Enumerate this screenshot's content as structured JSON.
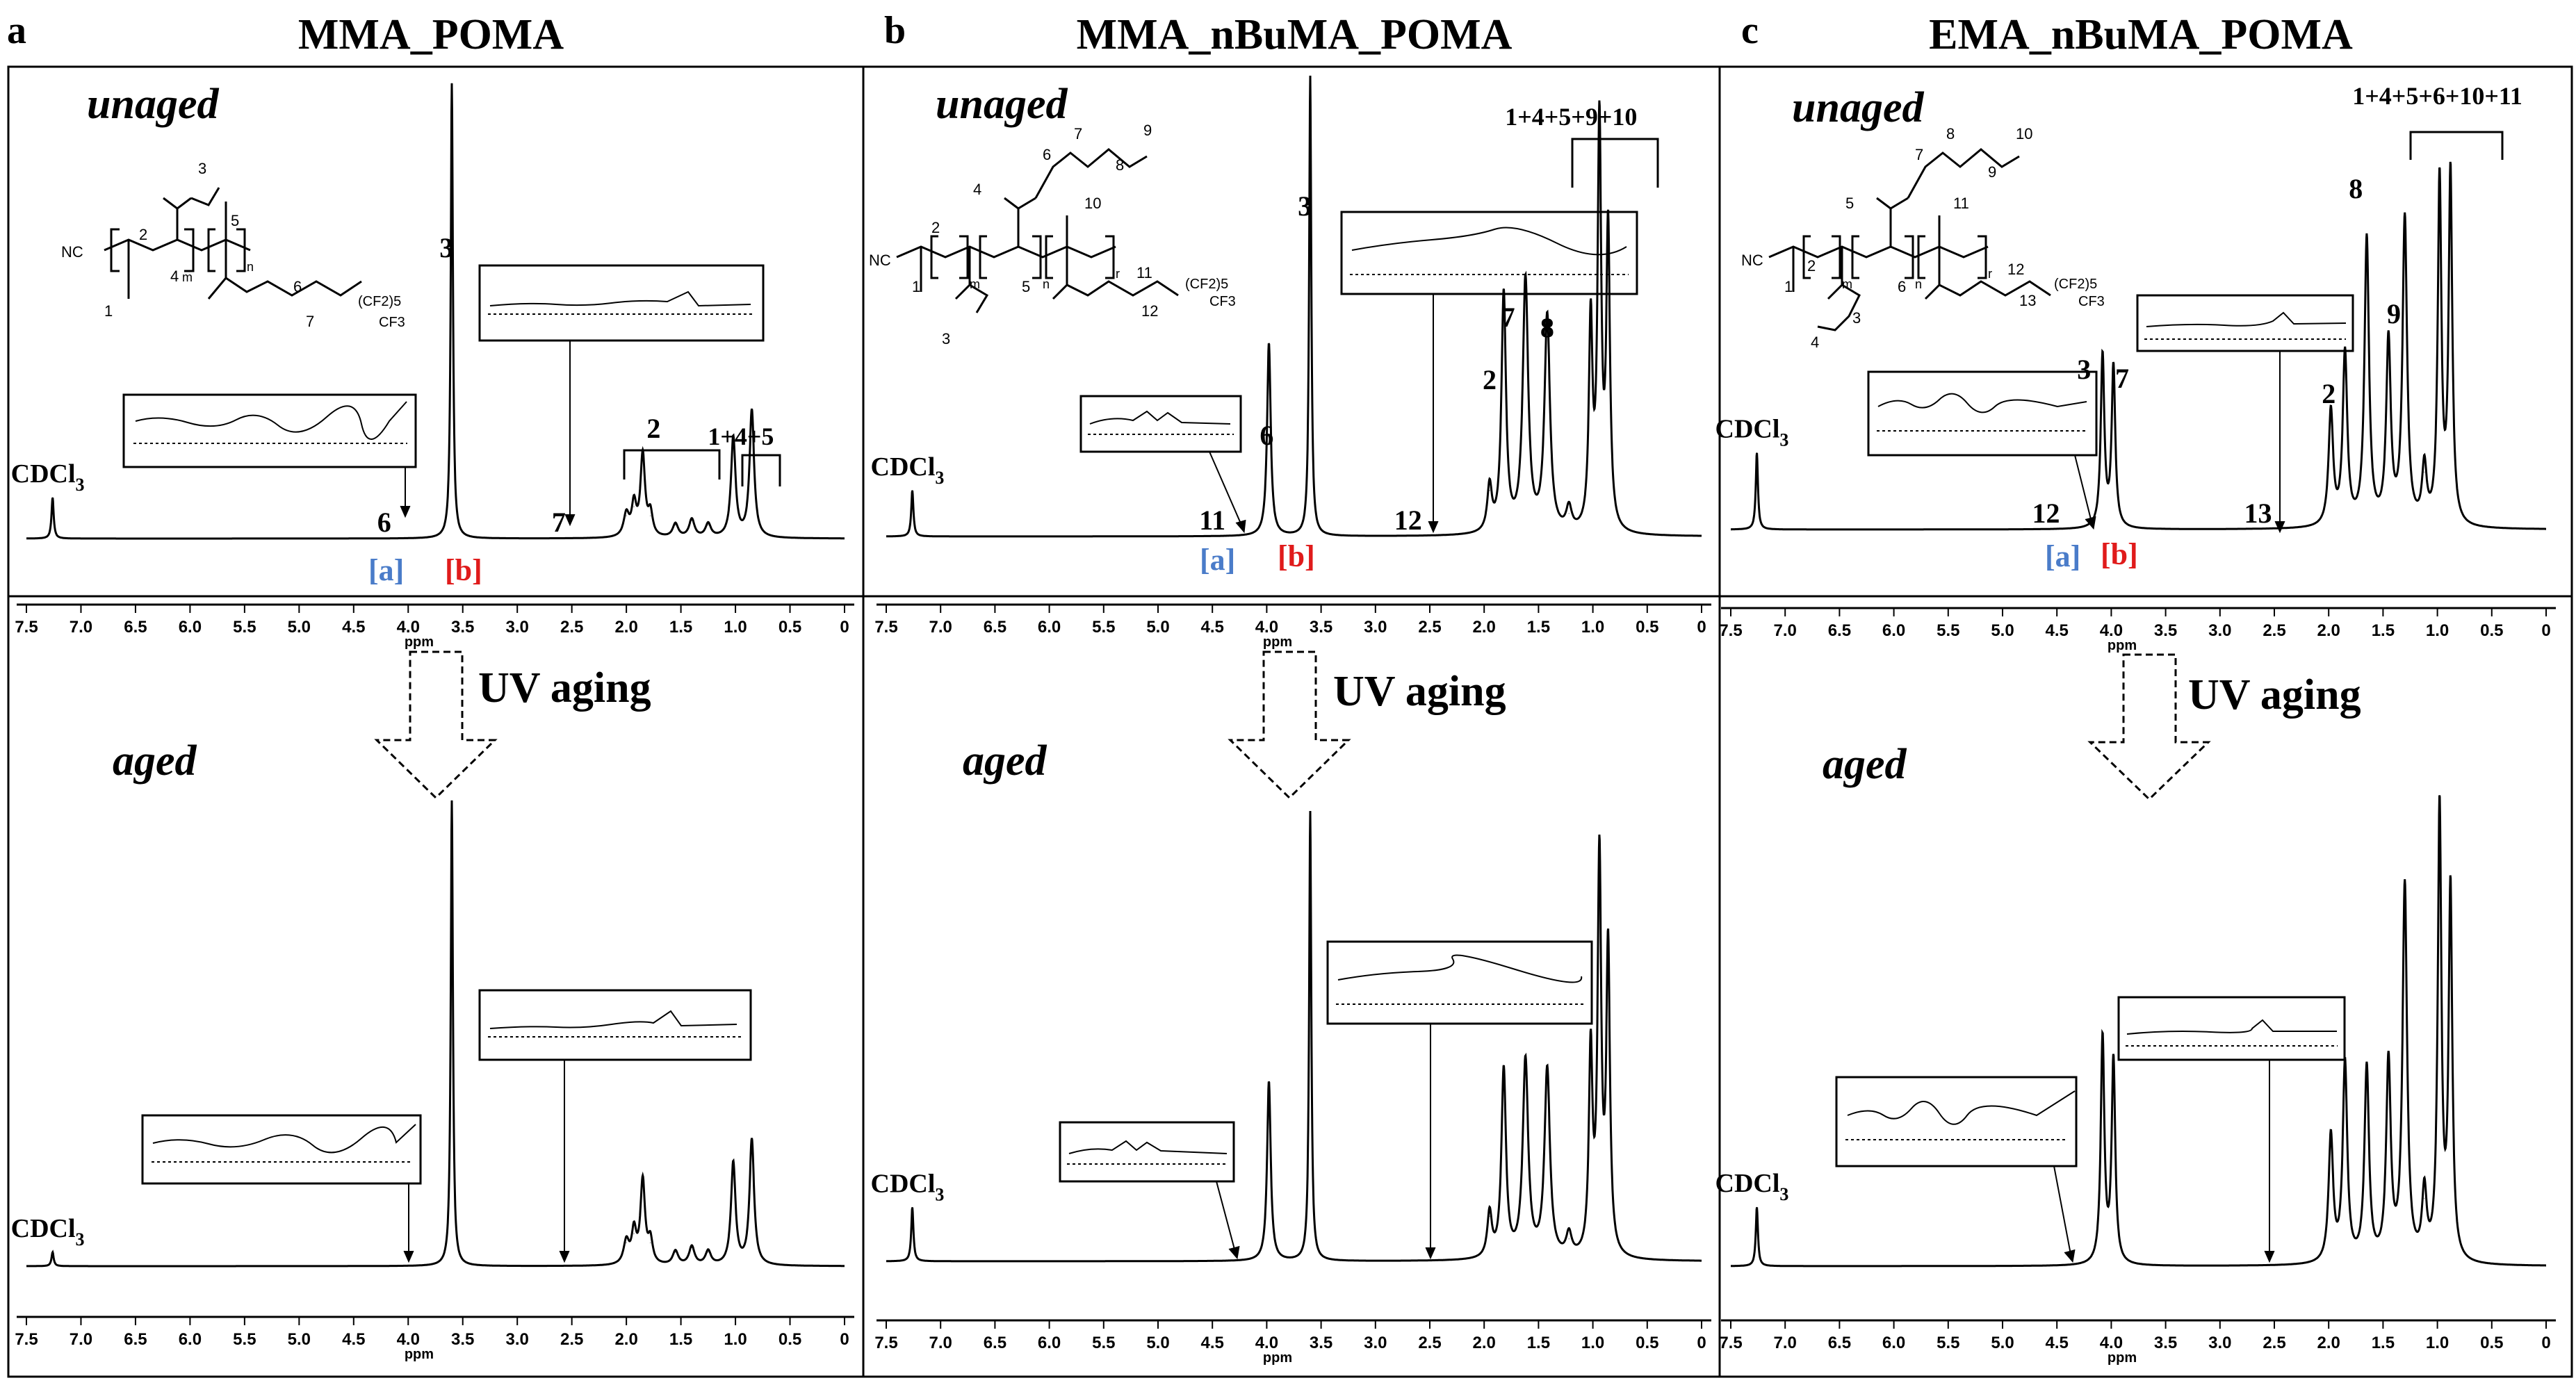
{
  "figure": {
    "background": "#ffffff",
    "ink": "#000000",
    "label_blue": "#4a7cc9",
    "label_red": "#e01b1b"
  },
  "panels": [
    {
      "letter": "a",
      "title": "MMA_POMA",
      "unaged_label": "unaged",
      "aged_label": "aged",
      "arrow_label": "UV aging",
      "solvent_label": "CDCl3",
      "axis_label": "ppm",
      "marker_a": "[a]",
      "marker_b": "[b]",
      "structure_numbers": [
        "1",
        "2",
        "3",
        "4",
        "5",
        "6",
        "7"
      ],
      "structure_text": [
        "NC",
        "m",
        "n",
        "(CF2)5",
        "CF3"
      ],
      "peak_labels": [
        {
          "text": "3",
          "ppm": 3.65
        },
        {
          "text": "2",
          "ppm": 1.75
        },
        {
          "text": "1+4+5",
          "ppm": 0.95
        },
        {
          "text": "6",
          "ppm": 4.22
        },
        {
          "text": "7",
          "ppm": 2.62
        }
      ]
    },
    {
      "letter": "b",
      "title": "MMA_nBuMA_POMA",
      "unaged_label": "unaged",
      "aged_label": "aged",
      "arrow_label": "UV aging",
      "solvent_label": "CDCl3",
      "axis_label": "ppm",
      "marker_a": "[a]",
      "marker_b": "[b]",
      "structure_numbers": [
        "1",
        "2",
        "3",
        "4",
        "5",
        "6",
        "7",
        "8",
        "9",
        "10",
        "11",
        "12"
      ],
      "structure_text": [
        "NC",
        "m",
        "n",
        "r",
        "(CF2)5",
        "CF3"
      ],
      "peak_labels": [
        {
          "text": "3",
          "ppm": 3.65
        },
        {
          "text": "6",
          "ppm": 4.0
        },
        {
          "text": "2",
          "ppm": 1.95
        },
        {
          "text": "7",
          "ppm": 1.78
        },
        {
          "text": "8",
          "ppm": 1.42
        },
        {
          "text": "1+4+5+9+10",
          "ppm": 1.2
        },
        {
          "text": "11",
          "ppm": 4.5
        },
        {
          "text": "12",
          "ppm": 2.7
        }
      ]
    },
    {
      "letter": "c",
      "title": "EMA_nBuMA_POMA",
      "unaged_label": "unaged",
      "aged_label": "aged",
      "arrow_label": "UV aging",
      "solvent_label": "CDCl3",
      "axis_label": "ppm",
      "marker_a": "[a]",
      "marker_b": "[b]",
      "structure_numbers": [
        "1",
        "2",
        "3",
        "4",
        "5",
        "6",
        "7",
        "8",
        "9",
        "10",
        "11",
        "12",
        "13"
      ],
      "structure_text": [
        "NC",
        "m",
        "n",
        "r",
        "(CF2)5",
        "CF3"
      ],
      "peak_labels": [
        {
          "text": "3",
          "ppm": 4.25
        },
        {
          "text": "7",
          "ppm": 3.9
        },
        {
          "text": "8",
          "ppm": 1.75
        },
        {
          "text": "9",
          "ppm": 1.4
        },
        {
          "text": "2",
          "ppm": 2.0
        },
        {
          "text": "1+4+5+6+10+11",
          "ppm": 1.0
        },
        {
          "text": "12",
          "ppm": 4.6
        },
        {
          "text": "13",
          "ppm": 2.65
        }
      ]
    }
  ],
  "chart_data": [
    {
      "type": "line",
      "title": "MMA_POMA",
      "series_name": "unaged",
      "xlabel": "ppm",
      "xlim": [
        7.5,
        0
      ],
      "xticks": [
        7.5,
        7.0,
        6.5,
        6.0,
        5.5,
        5.0,
        4.5,
        4.0,
        3.5,
        3.0,
        2.5,
        2.0,
        1.5,
        1.0,
        0.5,
        0
      ],
      "ylim": [
        0,
        1.0
      ],
      "peaks": [
        {
          "ppm": 7.26,
          "height": 0.09,
          "width": 0.012
        },
        {
          "ppm": 3.6,
          "height": 1.0,
          "width": 0.012
        },
        {
          "ppm": 2.0,
          "height": 0.05,
          "width": 0.03
        },
        {
          "ppm": 1.93,
          "height": 0.07,
          "width": 0.025
        },
        {
          "ppm": 1.85,
          "height": 0.18,
          "width": 0.025
        },
        {
          "ppm": 1.78,
          "height": 0.05,
          "width": 0.025
        },
        {
          "ppm": 1.55,
          "height": 0.03,
          "width": 0.03
        },
        {
          "ppm": 1.4,
          "height": 0.04,
          "width": 0.03
        },
        {
          "ppm": 1.25,
          "height": 0.03,
          "width": 0.03
        },
        {
          "ppm": 1.02,
          "height": 0.22,
          "width": 0.025
        },
        {
          "ppm": 0.85,
          "height": 0.28,
          "width": 0.025
        }
      ]
    },
    {
      "type": "line",
      "title": "MMA_POMA",
      "series_name": "aged",
      "xlabel": "ppm",
      "xlim": [
        7.5,
        0
      ],
      "xticks": [
        7.5,
        7.0,
        6.5,
        6.0,
        5.5,
        5.0,
        4.5,
        4.0,
        3.5,
        3.0,
        2.5,
        2.0,
        1.5,
        1.0,
        0.5,
        0
      ],
      "ylim": [
        0,
        1.0
      ],
      "peaks": [
        {
          "ppm": 7.26,
          "height": 0.03,
          "width": 0.012
        },
        {
          "ppm": 3.6,
          "height": 1.0,
          "width": 0.012
        },
        {
          "ppm": 2.0,
          "height": 0.05,
          "width": 0.03
        },
        {
          "ppm": 1.93,
          "height": 0.07,
          "width": 0.025
        },
        {
          "ppm": 1.85,
          "height": 0.18,
          "width": 0.025
        },
        {
          "ppm": 1.78,
          "height": 0.05,
          "width": 0.025
        },
        {
          "ppm": 1.55,
          "height": 0.03,
          "width": 0.03
        },
        {
          "ppm": 1.4,
          "height": 0.04,
          "width": 0.03
        },
        {
          "ppm": 1.25,
          "height": 0.03,
          "width": 0.03
        },
        {
          "ppm": 1.02,
          "height": 0.22,
          "width": 0.025
        },
        {
          "ppm": 0.85,
          "height": 0.27,
          "width": 0.025
        }
      ]
    },
    {
      "type": "line",
      "title": "MMA_nBuMA_POMA",
      "series_name": "unaged",
      "xlabel": "ppm",
      "xlim": [
        7.5,
        0
      ],
      "xticks": [
        7.5,
        7.0,
        6.5,
        6.0,
        5.5,
        5.0,
        4.5,
        4.0,
        3.5,
        3.0,
        2.5,
        2.0,
        1.5,
        1.0,
        0.5,
        0
      ],
      "ylim": [
        0,
        1.0
      ],
      "peaks": [
        {
          "ppm": 7.26,
          "height": 0.1,
          "width": 0.012
        },
        {
          "ppm": 3.98,
          "height": 0.42,
          "width": 0.02
        },
        {
          "ppm": 3.6,
          "height": 1.0,
          "width": 0.012
        },
        {
          "ppm": 1.95,
          "height": 0.1,
          "width": 0.025
        },
        {
          "ppm": 1.82,
          "height": 0.52,
          "width": 0.025
        },
        {
          "ppm": 1.62,
          "height": 0.55,
          "width": 0.03
        },
        {
          "ppm": 1.42,
          "height": 0.47,
          "width": 0.03
        },
        {
          "ppm": 1.22,
          "height": 0.05,
          "width": 0.03
        },
        {
          "ppm": 1.02,
          "height": 0.45,
          "width": 0.02
        },
        {
          "ppm": 0.94,
          "height": 0.88,
          "width": 0.02
        },
        {
          "ppm": 0.86,
          "height": 0.65,
          "width": 0.02
        }
      ]
    },
    {
      "type": "line",
      "title": "MMA_nBuMA_POMA",
      "series_name": "aged",
      "xlabel": "ppm",
      "xlim": [
        7.5,
        0
      ],
      "xticks": [
        7.5,
        7.0,
        6.5,
        6.0,
        5.5,
        5.0,
        4.5,
        4.0,
        3.5,
        3.0,
        2.5,
        2.0,
        1.5,
        1.0,
        0.5,
        0
      ],
      "ylim": [
        0,
        1.0
      ],
      "peaks": [
        {
          "ppm": 7.26,
          "height": 0.12,
          "width": 0.012
        },
        {
          "ppm": 3.98,
          "height": 0.4,
          "width": 0.02
        },
        {
          "ppm": 3.6,
          "height": 1.0,
          "width": 0.012
        },
        {
          "ppm": 1.95,
          "height": 0.1,
          "width": 0.025
        },
        {
          "ppm": 1.82,
          "height": 0.42,
          "width": 0.025
        },
        {
          "ppm": 1.62,
          "height": 0.44,
          "width": 0.03
        },
        {
          "ppm": 1.42,
          "height": 0.42,
          "width": 0.03
        },
        {
          "ppm": 1.22,
          "height": 0.05,
          "width": 0.03
        },
        {
          "ppm": 1.02,
          "height": 0.45,
          "width": 0.02
        },
        {
          "ppm": 0.94,
          "height": 0.88,
          "width": 0.02
        },
        {
          "ppm": 0.86,
          "height": 0.68,
          "width": 0.02
        }
      ]
    },
    {
      "type": "line",
      "title": "EMA_nBuMA_POMA",
      "series_name": "unaged",
      "xlabel": "ppm",
      "xlim": [
        7.5,
        0
      ],
      "xticks": [
        7.5,
        7.0,
        6.5,
        6.0,
        5.5,
        5.0,
        4.5,
        4.0,
        3.5,
        3.0,
        2.5,
        2.0,
        1.5,
        1.0,
        0.5,
        0
      ],
      "ylim": [
        0,
        1.0
      ],
      "peaks": [
        {
          "ppm": 7.26,
          "height": 0.2,
          "width": 0.012
        },
        {
          "ppm": 4.08,
          "height": 0.45,
          "width": 0.02
        },
        {
          "ppm": 3.98,
          "height": 0.42,
          "width": 0.02
        },
        {
          "ppm": 1.98,
          "height": 0.3,
          "width": 0.025
        },
        {
          "ppm": 1.85,
          "height": 0.45,
          "width": 0.025
        },
        {
          "ppm": 1.65,
          "height": 0.75,
          "width": 0.025
        },
        {
          "ppm": 1.45,
          "height": 0.48,
          "width": 0.025
        },
        {
          "ppm": 1.3,
          "height": 0.8,
          "width": 0.025
        },
        {
          "ppm": 1.12,
          "height": 0.15,
          "width": 0.025
        },
        {
          "ppm": 0.98,
          "height": 0.9,
          "width": 0.02
        },
        {
          "ppm": 0.88,
          "height": 0.92,
          "width": 0.02
        }
      ]
    },
    {
      "type": "line",
      "title": "EMA_nBuMA_POMA",
      "series_name": "aged",
      "xlabel": "ppm",
      "xlim": [
        7.5,
        0
      ],
      "xticks": [
        7.5,
        7.0,
        6.5,
        6.0,
        5.5,
        5.0,
        4.5,
        4.0,
        3.5,
        3.0,
        2.5,
        2.0,
        1.5,
        1.0,
        0.5,
        0
      ],
      "ylim": [
        0,
        1.0
      ],
      "peaks": [
        {
          "ppm": 7.26,
          "height": 0.13,
          "width": 0.012
        },
        {
          "ppm": 4.08,
          "height": 0.5,
          "width": 0.02
        },
        {
          "ppm": 3.98,
          "height": 0.45,
          "width": 0.02
        },
        {
          "ppm": 1.98,
          "height": 0.28,
          "width": 0.025
        },
        {
          "ppm": 1.85,
          "height": 0.44,
          "width": 0.025
        },
        {
          "ppm": 1.65,
          "height": 0.43,
          "width": 0.025
        },
        {
          "ppm": 1.45,
          "height": 0.44,
          "width": 0.025
        },
        {
          "ppm": 1.3,
          "height": 0.83,
          "width": 0.025
        },
        {
          "ppm": 1.12,
          "height": 0.15,
          "width": 0.025
        },
        {
          "ppm": 0.98,
          "height": 1.0,
          "width": 0.02
        },
        {
          "ppm": 0.88,
          "height": 0.82,
          "width": 0.02
        }
      ]
    }
  ]
}
